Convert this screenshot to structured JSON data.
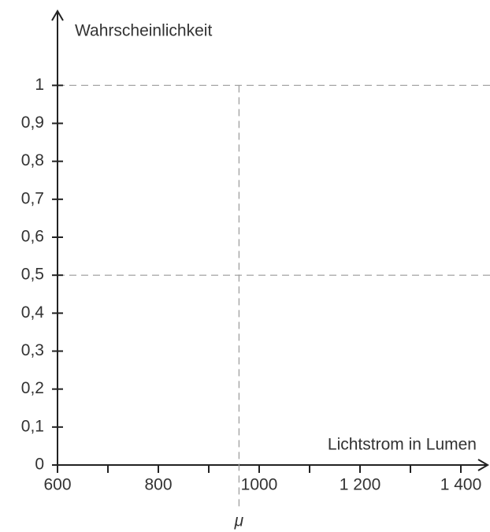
{
  "chart_data": {
    "type": "line",
    "ylabel": "Wahrscheinlichkeit",
    "xlabel": "Lichtstrom in Lumen",
    "xlim": [
      600,
      1450
    ],
    "ylim": [
      0,
      1.2
    ],
    "xticks": [
      600,
      800,
      1000,
      {
        "value": 1200,
        "label": "1 200"
      },
      {
        "value": 1400,
        "label": "1 400"
      }
    ],
    "xminor": [
      700,
      900,
      1100,
      1300
    ],
    "yticks": [
      0,
      {
        "value": 0.1,
        "label": "0,1"
      },
      {
        "value": 0.2,
        "label": "0,2"
      },
      {
        "value": 0.3,
        "label": "0,3"
      },
      {
        "value": 0.4,
        "label": "0,4"
      },
      {
        "value": 0.5,
        "label": "0,5"
      },
      {
        "value": 0.6,
        "label": "0,6"
      },
      {
        "value": 0.7,
        "label": "0,7"
      },
      {
        "value": 0.8,
        "label": "0,8"
      },
      {
        "value": 0.9,
        "label": "0,9"
      },
      1
    ],
    "hlines": [
      1,
      0.5
    ],
    "vline": {
      "value": 960,
      "label": "μ"
    }
  }
}
